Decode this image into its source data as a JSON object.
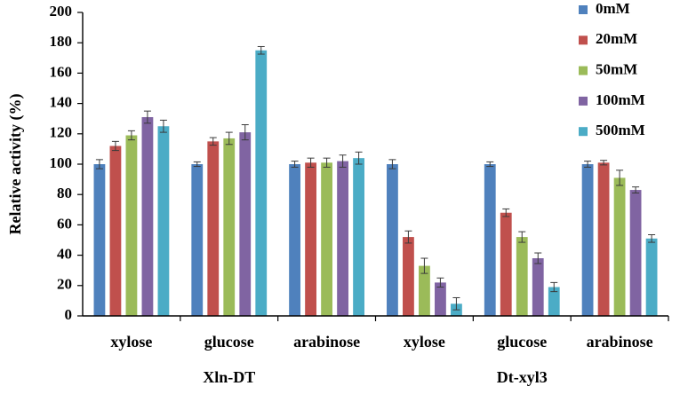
{
  "chart_data": {
    "type": "bar",
    "ylabel": "Relative activity (%)",
    "ylim": [
      0,
      200
    ],
    "yticks": [
      0,
      20,
      40,
      60,
      80,
      100,
      120,
      140,
      160,
      180,
      200
    ],
    "grid": false,
    "legend_position": "top-right",
    "categories": [
      "xylose",
      "glucose",
      "arabinose",
      "xylose",
      "glucose",
      "arabinose"
    ],
    "groups": [
      {
        "label": "Xln-DT",
        "categories": [
          0,
          1,
          2
        ]
      },
      {
        "label": "Dt-xyl3",
        "categories": [
          3,
          4,
          5
        ]
      }
    ],
    "series": [
      {
        "name": "0mM",
        "color": "#4f81bd",
        "values": [
          100,
          100,
          100,
          100,
          100,
          100
        ],
        "errors": [
          3,
          1.5,
          2,
          3,
          1.5,
          2
        ]
      },
      {
        "name": "20mM",
        "color": "#c0504d",
        "values": [
          112,
          115,
          101,
          52,
          68,
          101
        ],
        "errors": [
          3,
          2.5,
          3,
          4,
          2.5,
          1.5
        ]
      },
      {
        "name": "50mM",
        "color": "#9bbb59",
        "values": [
          119,
          117,
          101,
          33,
          52,
          91
        ],
        "errors": [
          3,
          4,
          3,
          5,
          3.5,
          5
        ]
      },
      {
        "name": "100mM",
        "color": "#8064a2",
        "values": [
          131,
          121,
          102,
          22,
          38,
          83
        ],
        "errors": [
          4,
          5,
          4,
          3,
          3.5,
          2
        ]
      },
      {
        "name": "500mM",
        "color": "#4bacc6",
        "values": [
          125,
          175,
          104,
          8,
          19,
          51
        ],
        "errors": [
          4,
          2.5,
          4,
          4,
          3,
          2.5
        ]
      }
    ]
  }
}
